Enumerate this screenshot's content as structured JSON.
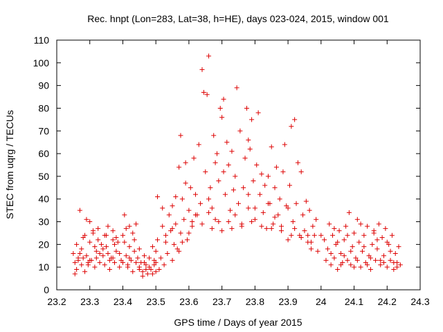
{
  "chart_data": {
    "type": "scatter",
    "title": "Rec. hnpt (Lon=283, Lat=38, h=HE), days 023-024, 2015, window 001",
    "xlabel": "GPS time / Days of year 2015",
    "ylabel": "STEC from uqrg / TECUs",
    "xlim": [
      23.2,
      24.3
    ],
    "ylim": [
      0,
      110
    ],
    "xticks": [
      "23.2",
      "23.3",
      "23.4",
      "23.5",
      "23.6",
      "23.7",
      "23.8",
      "23.9",
      "24",
      "24.1",
      "24.2",
      "24.3"
    ],
    "yticks": [
      "0",
      "10",
      "20",
      "30",
      "40",
      "50",
      "60",
      "70",
      "80",
      "90",
      "100",
      "110"
    ],
    "grid": false,
    "legend": "none",
    "marker": "+",
    "marker_color": "#dd0000",
    "series": [
      {
        "points": [
          [
            23.255,
            12
          ],
          [
            23.26,
            9
          ],
          [
            23.265,
            13
          ],
          [
            23.27,
            16
          ],
          [
            23.27,
            35
          ],
          [
            23.275,
            11
          ],
          [
            23.28,
            14
          ],
          [
            23.285,
            8
          ],
          [
            23.285,
            24
          ],
          [
            23.29,
            31
          ],
          [
            23.295,
            11
          ],
          [
            23.3,
            21
          ],
          [
            23.3,
            30
          ],
          [
            23.305,
            13
          ],
          [
            23.31,
            25
          ],
          [
            23.315,
            10
          ],
          [
            23.32,
            17
          ],
          [
            23.325,
            22
          ],
          [
            23.325,
            27
          ],
          [
            23.33,
            12
          ],
          [
            23.335,
            20
          ],
          [
            23.34,
            15
          ],
          [
            23.345,
            11
          ],
          [
            23.35,
            19
          ],
          [
            23.35,
            24
          ],
          [
            23.355,
            28
          ],
          [
            23.36,
            9
          ],
          [
            23.365,
            14
          ],
          [
            23.37,
            22
          ],
          [
            23.37,
            26
          ],
          [
            23.375,
            12
          ],
          [
            23.38,
            17
          ],
          [
            23.385,
            21
          ],
          [
            23.39,
            10
          ],
          [
            23.395,
            13
          ],
          [
            23.4,
            24
          ],
          [
            23.405,
            33
          ],
          [
            23.41,
            15
          ],
          [
            23.41,
            27
          ],
          [
            23.415,
            11
          ],
          [
            23.42,
            19
          ],
          [
            23.42,
            28
          ],
          [
            23.425,
            13
          ],
          [
            23.43,
            25
          ],
          [
            23.435,
            22
          ],
          [
            23.44,
            29
          ],
          [
            23.445,
            14
          ],
          [
            23.45,
            10
          ],
          [
            23.45,
            18
          ],
          [
            23.455,
            12
          ],
          [
            23.46,
            8
          ],
          [
            23.465,
            15
          ],
          [
            23.47,
            11
          ],
          [
            23.475,
            7
          ],
          [
            23.48,
            14
          ],
          [
            23.485,
            9
          ],
          [
            23.49,
            19
          ],
          [
            23.495,
            13
          ],
          [
            23.5,
            8
          ],
          [
            23.25,
            16
          ],
          [
            23.26,
            20
          ],
          [
            23.275,
            18
          ],
          [
            23.29,
            15
          ],
          [
            23.3,
            13
          ],
          [
            23.315,
            19
          ],
          [
            23.33,
            16
          ],
          [
            23.345,
            24
          ],
          [
            23.36,
            13
          ],
          [
            23.375,
            20
          ],
          [
            23.39,
            16
          ],
          [
            23.405,
            21
          ],
          [
            23.42,
            14
          ],
          [
            23.435,
            17
          ],
          [
            23.45,
            9
          ],
          [
            23.465,
            12
          ],
          [
            23.48,
            10
          ],
          [
            23.495,
            11
          ],
          [
            23.255,
            7
          ],
          [
            23.28,
            23
          ],
          [
            23.31,
            26
          ],
          [
            23.34,
            18
          ],
          [
            23.37,
            14
          ],
          [
            23.4,
            12
          ],
          [
            23.43,
            8
          ],
          [
            23.46,
            6
          ],
          [
            23.49,
            7
          ],
          [
            23.265,
            14
          ],
          [
            23.295,
            12
          ],
          [
            23.32,
            14
          ],
          [
            23.355,
            16
          ],
          [
            23.38,
            23
          ],
          [
            23.415,
            10
          ],
          [
            23.44,
            12
          ],
          [
            23.47,
            9
          ],
          [
            23.5,
            12
          ],
          [
            23.5,
            17
          ],
          [
            23.505,
            41
          ],
          [
            23.505,
            22
          ],
          [
            23.51,
            9
          ],
          [
            23.515,
            14
          ],
          [
            23.52,
            28
          ],
          [
            23.52,
            36
          ],
          [
            23.525,
            11
          ],
          [
            23.53,
            21
          ],
          [
            23.535,
            16
          ],
          [
            23.54,
            33
          ],
          [
            23.545,
            26
          ],
          [
            23.55,
            37
          ],
          [
            23.55,
            13
          ],
          [
            23.555,
            20
          ],
          [
            23.56,
            29
          ],
          [
            23.56,
            41
          ],
          [
            23.565,
            18
          ],
          [
            23.57,
            54
          ],
          [
            23.575,
            68
          ],
          [
            23.575,
            25
          ],
          [
            23.58,
            40
          ],
          [
            23.585,
            31
          ],
          [
            23.59,
            47
          ],
          [
            23.59,
            56
          ],
          [
            23.595,
            22
          ],
          [
            23.6,
            35
          ],
          [
            23.605,
            45
          ],
          [
            23.61,
            28
          ],
          [
            23.615,
            58
          ],
          [
            23.62,
            42
          ],
          [
            23.625,
            33
          ],
          [
            23.63,
            64
          ],
          [
            23.635,
            38
          ],
          [
            23.64,
            97
          ],
          [
            23.645,
            87
          ],
          [
            23.65,
            52
          ],
          [
            23.655,
            86
          ],
          [
            23.66,
            103
          ],
          [
            23.665,
            45
          ],
          [
            23.66,
            40
          ],
          [
            23.67,
            36
          ],
          [
            23.675,
            68
          ],
          [
            23.68,
            56
          ],
          [
            23.685,
            60
          ],
          [
            23.69,
            48
          ],
          [
            23.69,
            30
          ],
          [
            23.695,
            80
          ],
          [
            23.7,
            76
          ],
          [
            23.705,
            52
          ],
          [
            23.705,
            84
          ],
          [
            23.71,
            42
          ],
          [
            23.715,
            65
          ],
          [
            23.72,
            55
          ],
          [
            23.725,
            35
          ],
          [
            23.73,
            61
          ],
          [
            23.735,
            44
          ],
          [
            23.74,
            50
          ],
          [
            23.745,
            89
          ],
          [
            23.75,
            38
          ],
          [
            23.755,
            70
          ],
          [
            23.76,
            28
          ],
          [
            23.765,
            45
          ],
          [
            23.77,
            58
          ],
          [
            23.775,
            80
          ],
          [
            23.78,
            36
          ],
          [
            23.78,
            66
          ],
          [
            23.785,
            62
          ],
          [
            23.79,
            75
          ],
          [
            23.795,
            48
          ],
          [
            23.8,
            31
          ],
          [
            23.805,
            55
          ],
          [
            23.81,
            78
          ],
          [
            23.815,
            42
          ],
          [
            23.82,
            51
          ],
          [
            23.825,
            34
          ],
          [
            23.83,
            46
          ],
          [
            23.835,
            27
          ],
          [
            23.84,
            50
          ],
          [
            23.845,
            38
          ],
          [
            23.85,
            63
          ],
          [
            23.855,
            29
          ],
          [
            23.86,
            45
          ],
          [
            23.865,
            54
          ],
          [
            23.87,
            33
          ],
          [
            23.875,
            40
          ],
          [
            23.88,
            28
          ],
          [
            23.885,
            52
          ],
          [
            23.89,
            64
          ],
          [
            23.895,
            37
          ],
          [
            23.9,
            22
          ],
          [
            23.905,
            46
          ],
          [
            23.91,
            72
          ],
          [
            23.915,
            30
          ],
          [
            23.92,
            75
          ],
          [
            23.925,
            38
          ],
          [
            23.93,
            56
          ],
          [
            23.935,
            24
          ],
          [
            23.94,
            52
          ],
          [
            23.945,
            33
          ],
          [
            23.95,
            26
          ],
          [
            23.955,
            39
          ],
          [
            23.96,
            21
          ],
          [
            23.965,
            35
          ],
          [
            23.97,
            18
          ],
          [
            23.975,
            28
          ],
          [
            23.98,
            24
          ],
          [
            23.985,
            31
          ],
          [
            23.99,
            17
          ],
          [
            23.55,
            27
          ],
          [
            23.58,
            21
          ],
          [
            23.61,
            30
          ],
          [
            23.64,
            29
          ],
          [
            23.67,
            27
          ],
          [
            23.7,
            26
          ],
          [
            23.73,
            27
          ],
          [
            23.76,
            29
          ],
          [
            23.79,
            30
          ],
          [
            23.82,
            28
          ],
          [
            23.85,
            27
          ],
          [
            23.88,
            26
          ],
          [
            23.91,
            24
          ],
          [
            23.94,
            23
          ],
          [
            23.97,
            21
          ],
          [
            23.53,
            24
          ],
          [
            23.62,
            33
          ],
          [
            23.68,
            31
          ],
          [
            23.74,
            33
          ],
          [
            23.8,
            36
          ],
          [
            23.86,
            32
          ],
          [
            23.92,
            27
          ],
          [
            23.6,
            25
          ],
          [
            23.72,
            30
          ],
          [
            23.84,
            38
          ],
          [
            23.96,
            24
          ],
          [
            23.57,
            17
          ],
          [
            23.66,
            34
          ],
          [
            23.78,
            42
          ],
          [
            23.9,
            36
          ],
          [
            24.02,
            18
          ],
          [
            24.025,
            29
          ],
          [
            24.03,
            11
          ],
          [
            24.035,
            24
          ],
          [
            24.04,
            14
          ],
          [
            24.045,
            20
          ],
          [
            24.05,
            9
          ],
          [
            24.055,
            26
          ],
          [
            24.06,
            16
          ],
          [
            24.065,
            12
          ],
          [
            24.07,
            22
          ],
          [
            24.075,
            28
          ],
          [
            24.08,
            13
          ],
          [
            24.085,
            34
          ],
          [
            24.09,
            11
          ],
          [
            24.095,
            19
          ],
          [
            24.1,
            25
          ],
          [
            24.105,
            14
          ],
          [
            24.11,
            31
          ],
          [
            24.115,
            21
          ],
          [
            24.12,
            10
          ],
          [
            24.125,
            17
          ],
          [
            24.13,
            24
          ],
          [
            24.135,
            12
          ],
          [
            24.14,
            28
          ],
          [
            24.145,
            15
          ],
          [
            24.15,
            9
          ],
          [
            24.155,
            20
          ],
          [
            24.16,
            26
          ],
          [
            24.165,
            13
          ],
          [
            24.17,
            18
          ],
          [
            24.175,
            29
          ],
          [
            24.18,
            11
          ],
          [
            24.185,
            23
          ],
          [
            24.19,
            15
          ],
          [
            24.195,
            27
          ],
          [
            24.2,
            10
          ],
          [
            24.205,
            20
          ],
          [
            24.21,
            13
          ],
          [
            24.215,
            24
          ],
          [
            24.22,
            9
          ],
          [
            24.225,
            16
          ],
          [
            24.23,
            12
          ],
          [
            24.235,
            19
          ],
          [
            24.24,
            11
          ],
          [
            24.0,
            24
          ],
          [
            24.01,
            22
          ],
          [
            24.03,
            16
          ],
          [
            24.05,
            21
          ],
          [
            24.07,
            15
          ],
          [
            24.09,
            17
          ],
          [
            24.11,
            13
          ],
          [
            24.13,
            19
          ],
          [
            24.15,
            14
          ],
          [
            24.17,
            22
          ],
          [
            24.19,
            12
          ],
          [
            24.21,
            17
          ],
          [
            24.23,
            10
          ],
          [
            24.015,
            13
          ],
          [
            24.06,
            11
          ],
          [
            24.1,
            10
          ],
          [
            24.14,
            11
          ],
          [
            24.18,
            13
          ],
          [
            24.22,
            12
          ],
          [
            24.04,
            27
          ],
          [
            24.08,
            24
          ],
          [
            24.12,
            29
          ],
          [
            24.16,
            25
          ],
          [
            24.2,
            21
          ]
        ]
      }
    ]
  }
}
